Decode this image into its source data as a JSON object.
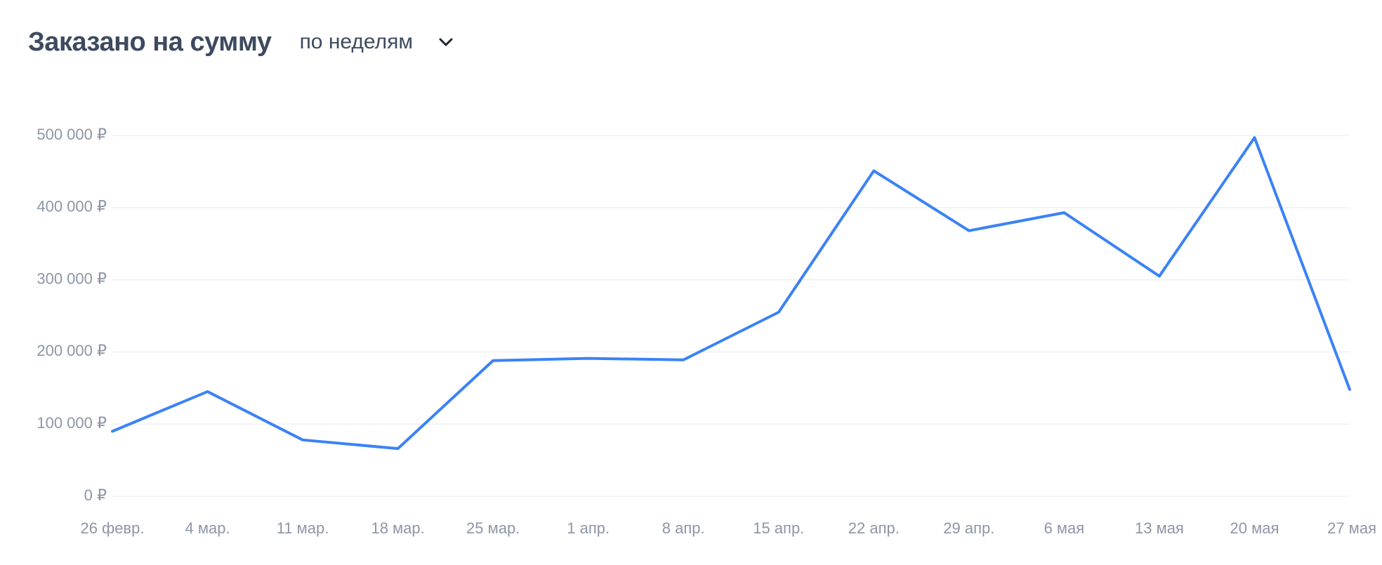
{
  "header": {
    "title": "Заказано на сумму",
    "period_label": "по неделям"
  },
  "colors": {
    "line": "#3b82f6",
    "title": "#3d4a5f",
    "tick": "#8d96a6",
    "grid": "#eef0f3"
  },
  "icons": {
    "period_dropdown": "chevron-down-icon"
  },
  "chart_data": {
    "type": "line",
    "title": "Заказано на сумму",
    "xlabel": "",
    "ylabel": "",
    "ylim": [
      0,
      500000
    ],
    "y_ticks": [
      0,
      100000,
      200000,
      300000,
      400000,
      500000
    ],
    "y_tick_labels": [
      "0 ₽",
      "100 000 ₽",
      "200 000 ₽",
      "300 000 ₽",
      "400 000 ₽",
      "500 000 ₽"
    ],
    "grid": true,
    "categories": [
      "26 февр.",
      "4 мар.",
      "11 мар.",
      "18 мар.",
      "25 мар.",
      "1 апр.",
      "8 апр.",
      "15 апр.",
      "22 апр.",
      "29 апр.",
      "6 мая",
      "13 мая",
      "20 мая",
      "27 мая"
    ],
    "series": [
      {
        "values": [
          90000,
          145000,
          78000,
          66000,
          188000,
          191000,
          189000,
          255000,
          451000,
          368000,
          393000,
          305000,
          497000,
          148000
        ]
      }
    ]
  }
}
